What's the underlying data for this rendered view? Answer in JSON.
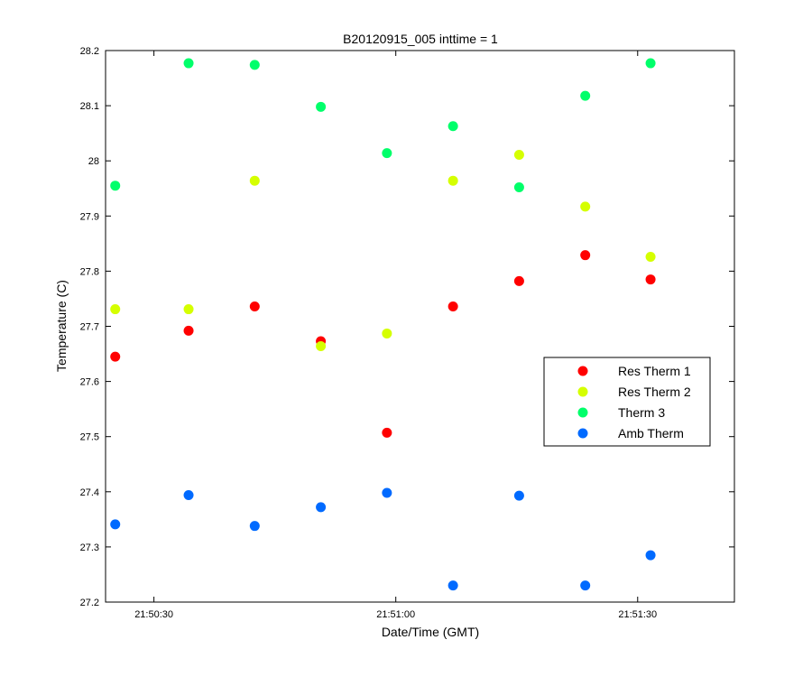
{
  "chart_data": {
    "type": "scatter",
    "title": "B20120915_005 inttime = 1",
    "xlabel": "Date/Time (GMT)",
    "ylabel": "Temperature (C)",
    "x_ticks": [
      "21:50:30",
      "21:51:00",
      "21:51:30"
    ],
    "x_tick_seconds": [
      30,
      60,
      90
    ],
    "xlim_seconds": [
      24,
      102
    ],
    "ylim": [
      27.2,
      28.2
    ],
    "y_ticks": [
      "27.2",
      "27.3",
      "27.4",
      "27.5",
      "27.6",
      "27.7",
      "27.8",
      "27.9",
      "28",
      "28.1",
      "28.2"
    ],
    "grid": false,
    "legend_position": "right-middle",
    "x_seconds_after": "21:50:00",
    "series": [
      {
        "name": "Res Therm 1",
        "color": "#ff0000",
        "x": [
          25.2,
          34.3,
          42.5,
          50.7,
          58.9,
          67.1,
          75.3,
          83.5,
          91.6
        ],
        "y": [
          27.645,
          27.692,
          27.736,
          27.673,
          27.507,
          27.736,
          27.782,
          27.829,
          27.785
        ]
      },
      {
        "name": "Res Therm 2",
        "color": "#d5ff00",
        "x": [
          25.2,
          34.3,
          42.5,
          50.7,
          58.9,
          67.1,
          75.3,
          83.5,
          91.6
        ],
        "y": [
          27.731,
          27.731,
          27.964,
          27.664,
          27.687,
          27.964,
          28.011,
          27.917,
          27.826
        ]
      },
      {
        "name": "Therm 3",
        "color": "#00ff6a",
        "x": [
          25.2,
          34.3,
          42.5,
          50.7,
          58.9,
          67.1,
          75.3,
          83.5,
          91.6
        ],
        "y": [
          27.955,
          28.177,
          28.174,
          28.098,
          28.014,
          28.063,
          27.952,
          28.118,
          28.177
        ]
      },
      {
        "name": "Amb Therm",
        "color": "#006aff",
        "x": [
          25.2,
          34.3,
          42.5,
          50.7,
          58.9,
          67.1,
          75.3,
          83.5,
          91.6
        ],
        "y": [
          27.341,
          27.394,
          27.338,
          27.372,
          27.398,
          27.23,
          27.393,
          27.23,
          27.285
        ]
      }
    ]
  }
}
